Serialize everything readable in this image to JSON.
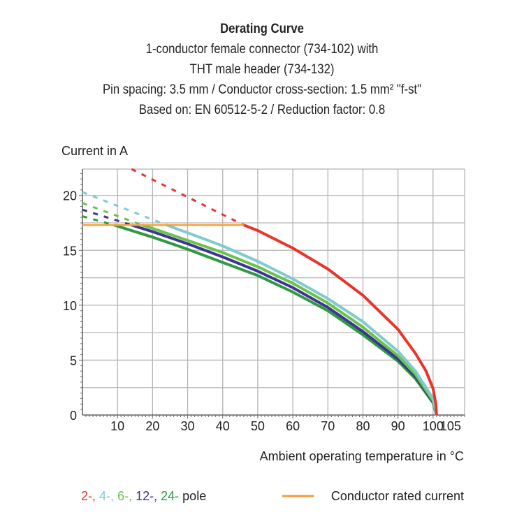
{
  "chart_data": {
    "type": "line",
    "title": "Derating Curve",
    "subtitle": [
      "1-conductor female connector (734-102) with",
      "THT male header (734-132)",
      "Pin spacing: 3.5 mm / Conductor cross-section: 1.5 mm² \"f-st\"",
      "Based on: EN 60512-5-2 / Reduction factor: 0.8"
    ],
    "xlabel": "Ambient operating temperature in °C",
    "ylabel": "Current in A",
    "xlim": [
      0,
      109
    ],
    "ylim": [
      0,
      22.4
    ],
    "xticks": [
      10,
      20,
      30,
      40,
      50,
      60,
      70,
      80,
      90,
      100,
      105
    ],
    "yticks": [
      0,
      5,
      10,
      15,
      20
    ],
    "grid": true,
    "legend": {
      "pole_prefixes": [
        "2-,",
        "4-,",
        "6-,",
        "12-,",
        "24-"
      ],
      "pole_suffix": "pole",
      "rated_label": "Conductor rated current"
    },
    "rated_current": {
      "value": 17.3,
      "x": [
        0,
        46
      ],
      "color": "#f7a13a"
    },
    "series": [
      {
        "pole": "2",
        "color": "#e8342b",
        "dashed": [
          [
            14,
            22.4
          ],
          [
            46,
            17.3
          ]
        ],
        "points": [
          [
            46,
            17.3
          ],
          [
            50,
            16.8
          ],
          [
            60,
            15.2
          ],
          [
            70,
            13.3
          ],
          [
            80,
            10.9
          ],
          [
            90,
            7.8
          ],
          [
            95,
            5.6
          ],
          [
            98,
            4.0
          ],
          [
            100,
            2.4
          ],
          [
            100.8,
            1.0
          ],
          [
            101,
            0
          ]
        ]
      },
      {
        "pole": "4",
        "color": "#7fcbcf",
        "dashed": [
          [
            0,
            20.3
          ],
          [
            24,
            17.3
          ]
        ],
        "points": [
          [
            24,
            17.3
          ],
          [
            30,
            16.6
          ],
          [
            40,
            15.4
          ],
          [
            50,
            14.0
          ],
          [
            60,
            12.4
          ],
          [
            70,
            10.6
          ],
          [
            80,
            8.5
          ],
          [
            90,
            5.8
          ],
          [
            95,
            4.0
          ],
          [
            100,
            1.5
          ],
          [
            101,
            0
          ]
        ]
      },
      {
        "pole": "6",
        "color": "#6cc24a",
        "dashed": [
          [
            0,
            19.3
          ],
          [
            17,
            17.3
          ]
        ],
        "points": [
          [
            17,
            17.3
          ],
          [
            20,
            17.0
          ],
          [
            30,
            15.9
          ],
          [
            40,
            14.8
          ],
          [
            50,
            13.5
          ],
          [
            60,
            12.0
          ],
          [
            70,
            10.2
          ],
          [
            80,
            8.0
          ],
          [
            90,
            5.4
          ],
          [
            95,
            3.7
          ],
          [
            100,
            1.3
          ],
          [
            101,
            0
          ]
        ]
      },
      {
        "pole": "12",
        "color": "#3b3596",
        "dashed": [
          [
            0,
            18.7
          ],
          [
            14,
            17.3
          ]
        ],
        "points": [
          [
            14,
            17.3
          ],
          [
            20,
            16.7
          ],
          [
            30,
            15.6
          ],
          [
            40,
            14.4
          ],
          [
            50,
            13.1
          ],
          [
            60,
            11.6
          ],
          [
            70,
            9.8
          ],
          [
            80,
            7.6
          ],
          [
            90,
            5.1
          ],
          [
            95,
            3.5
          ],
          [
            100,
            1.2
          ],
          [
            101,
            0
          ]
        ]
      },
      {
        "pole": "24",
        "color": "#2f9a3e",
        "dashed": [
          [
            0,
            18.1
          ],
          [
            9,
            17.3
          ]
        ],
        "points": [
          [
            9,
            17.3
          ],
          [
            10,
            17.2
          ],
          [
            20,
            16.2
          ],
          [
            30,
            15.1
          ],
          [
            40,
            13.9
          ],
          [
            50,
            12.7
          ],
          [
            60,
            11.2
          ],
          [
            70,
            9.5
          ],
          [
            80,
            7.3
          ],
          [
            90,
            4.9
          ],
          [
            95,
            3.3
          ],
          [
            100,
            1.1
          ],
          [
            101,
            0
          ]
        ]
      }
    ]
  }
}
